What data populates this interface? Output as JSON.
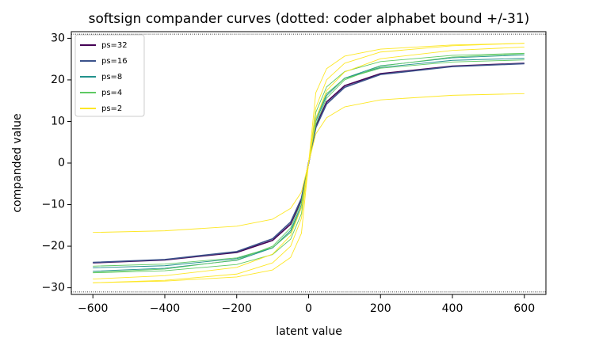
{
  "chart_data": {
    "type": "line",
    "title": "softsign compander curves (dotted: coder alphabet bound +/-31)",
    "x_label": "latent value",
    "y_label": "companded value",
    "x": [
      -600,
      -400,
      -200,
      -100,
      -50,
      -20,
      0,
      20,
      50,
      100,
      200,
      400,
      600
    ],
    "series": [
      {
        "name": "ps=32",
        "color": "#440154",
        "lines": [
          [
            -24.0,
            -23.3,
            -21.5,
            -18.6,
            -14.7,
            -8.9,
            0,
            8.9,
            14.7,
            18.6,
            21.5,
            23.3,
            24.0
          ]
        ]
      },
      {
        "name": "ps=16",
        "color": "#3b528b",
        "lines": [
          [
            -23.9,
            -23.2,
            -21.3,
            -18.2,
            -14.2,
            -8.5,
            0,
            8.5,
            14.2,
            18.2,
            21.3,
            23.2,
            23.9
          ]
        ]
      },
      {
        "name": "ps=8",
        "color": "#21918c",
        "lines": [
          [
            -25.2,
            -24.7,
            -23.0,
            -20.4,
            -16.6,
            -10.6,
            0,
            10.6,
            16.6,
            20.4,
            23.0,
            24.7,
            25.2
          ],
          [
            -26.0,
            -25.3,
            -23.4,
            -20.4,
            -16.2,
            -10.0,
            0,
            10.0,
            16.2,
            20.4,
            23.4,
            25.3,
            26.0
          ]
        ]
      },
      {
        "name": "ps=4",
        "color": "#5ec962",
        "lines": [
          [
            -26.4,
            -25.9,
            -24.4,
            -22.0,
            -18.3,
            -12.2,
            0,
            12.2,
            18.3,
            22.0,
            24.4,
            25.9,
            26.4
          ],
          [
            -26.3,
            -25.5,
            -23.3,
            -20.0,
            -15.6,
            -9.3,
            0,
            9.3,
            15.6,
            20.0,
            23.3,
            25.5,
            26.3
          ],
          [
            -24.8,
            -24.3,
            -22.8,
            -20.3,
            -16.7,
            -10.8,
            0,
            10.8,
            16.7,
            20.3,
            22.8,
            24.3,
            24.8
          ]
        ]
      },
      {
        "name": "ps=2",
        "color": "#fde725",
        "lines": [
          [
            -28.8,
            -28.4,
            -27.4,
            -25.7,
            -22.7,
            -16.9,
            0,
            16.9,
            22.7,
            25.7,
            27.4,
            28.4,
            28.8
          ],
          [
            -28.8,
            -28.2,
            -26.7,
            -24.0,
            -20.0,
            -13.3,
            0,
            13.3,
            20.0,
            24.0,
            26.7,
            28.2,
            28.8
          ],
          [
            -27.9,
            -27.1,
            -25.1,
            -21.9,
            -17.4,
            -10.7,
            0,
            10.7,
            17.4,
            21.9,
            25.1,
            27.1,
            27.9
          ],
          [
            -16.7,
            -16.3,
            -15.2,
            -13.5,
            -10.9,
            -7.0,
            0,
            7.0,
            10.9,
            13.5,
            15.2,
            16.3,
            16.7
          ]
        ]
      }
    ],
    "bound_lines": [
      31,
      -31
    ],
    "xlim": [
      -660,
      660
    ],
    "xticks": [
      {
        "value": -600,
        "label": "−600"
      },
      {
        "value": -400,
        "label": "−400"
      },
      {
        "value": -200,
        "label": "−200"
      },
      0,
      200,
      400,
      600
    ],
    "ylim": [
      -31.6,
      31.6
    ],
    "yticks": [
      {
        "value": -30,
        "label": "−30"
      },
      {
        "value": -20,
        "label": "−20"
      },
      {
        "value": -10,
        "label": "−10"
      },
      0,
      10,
      20,
      30
    ],
    "legend": "upper left",
    "grid": false
  }
}
